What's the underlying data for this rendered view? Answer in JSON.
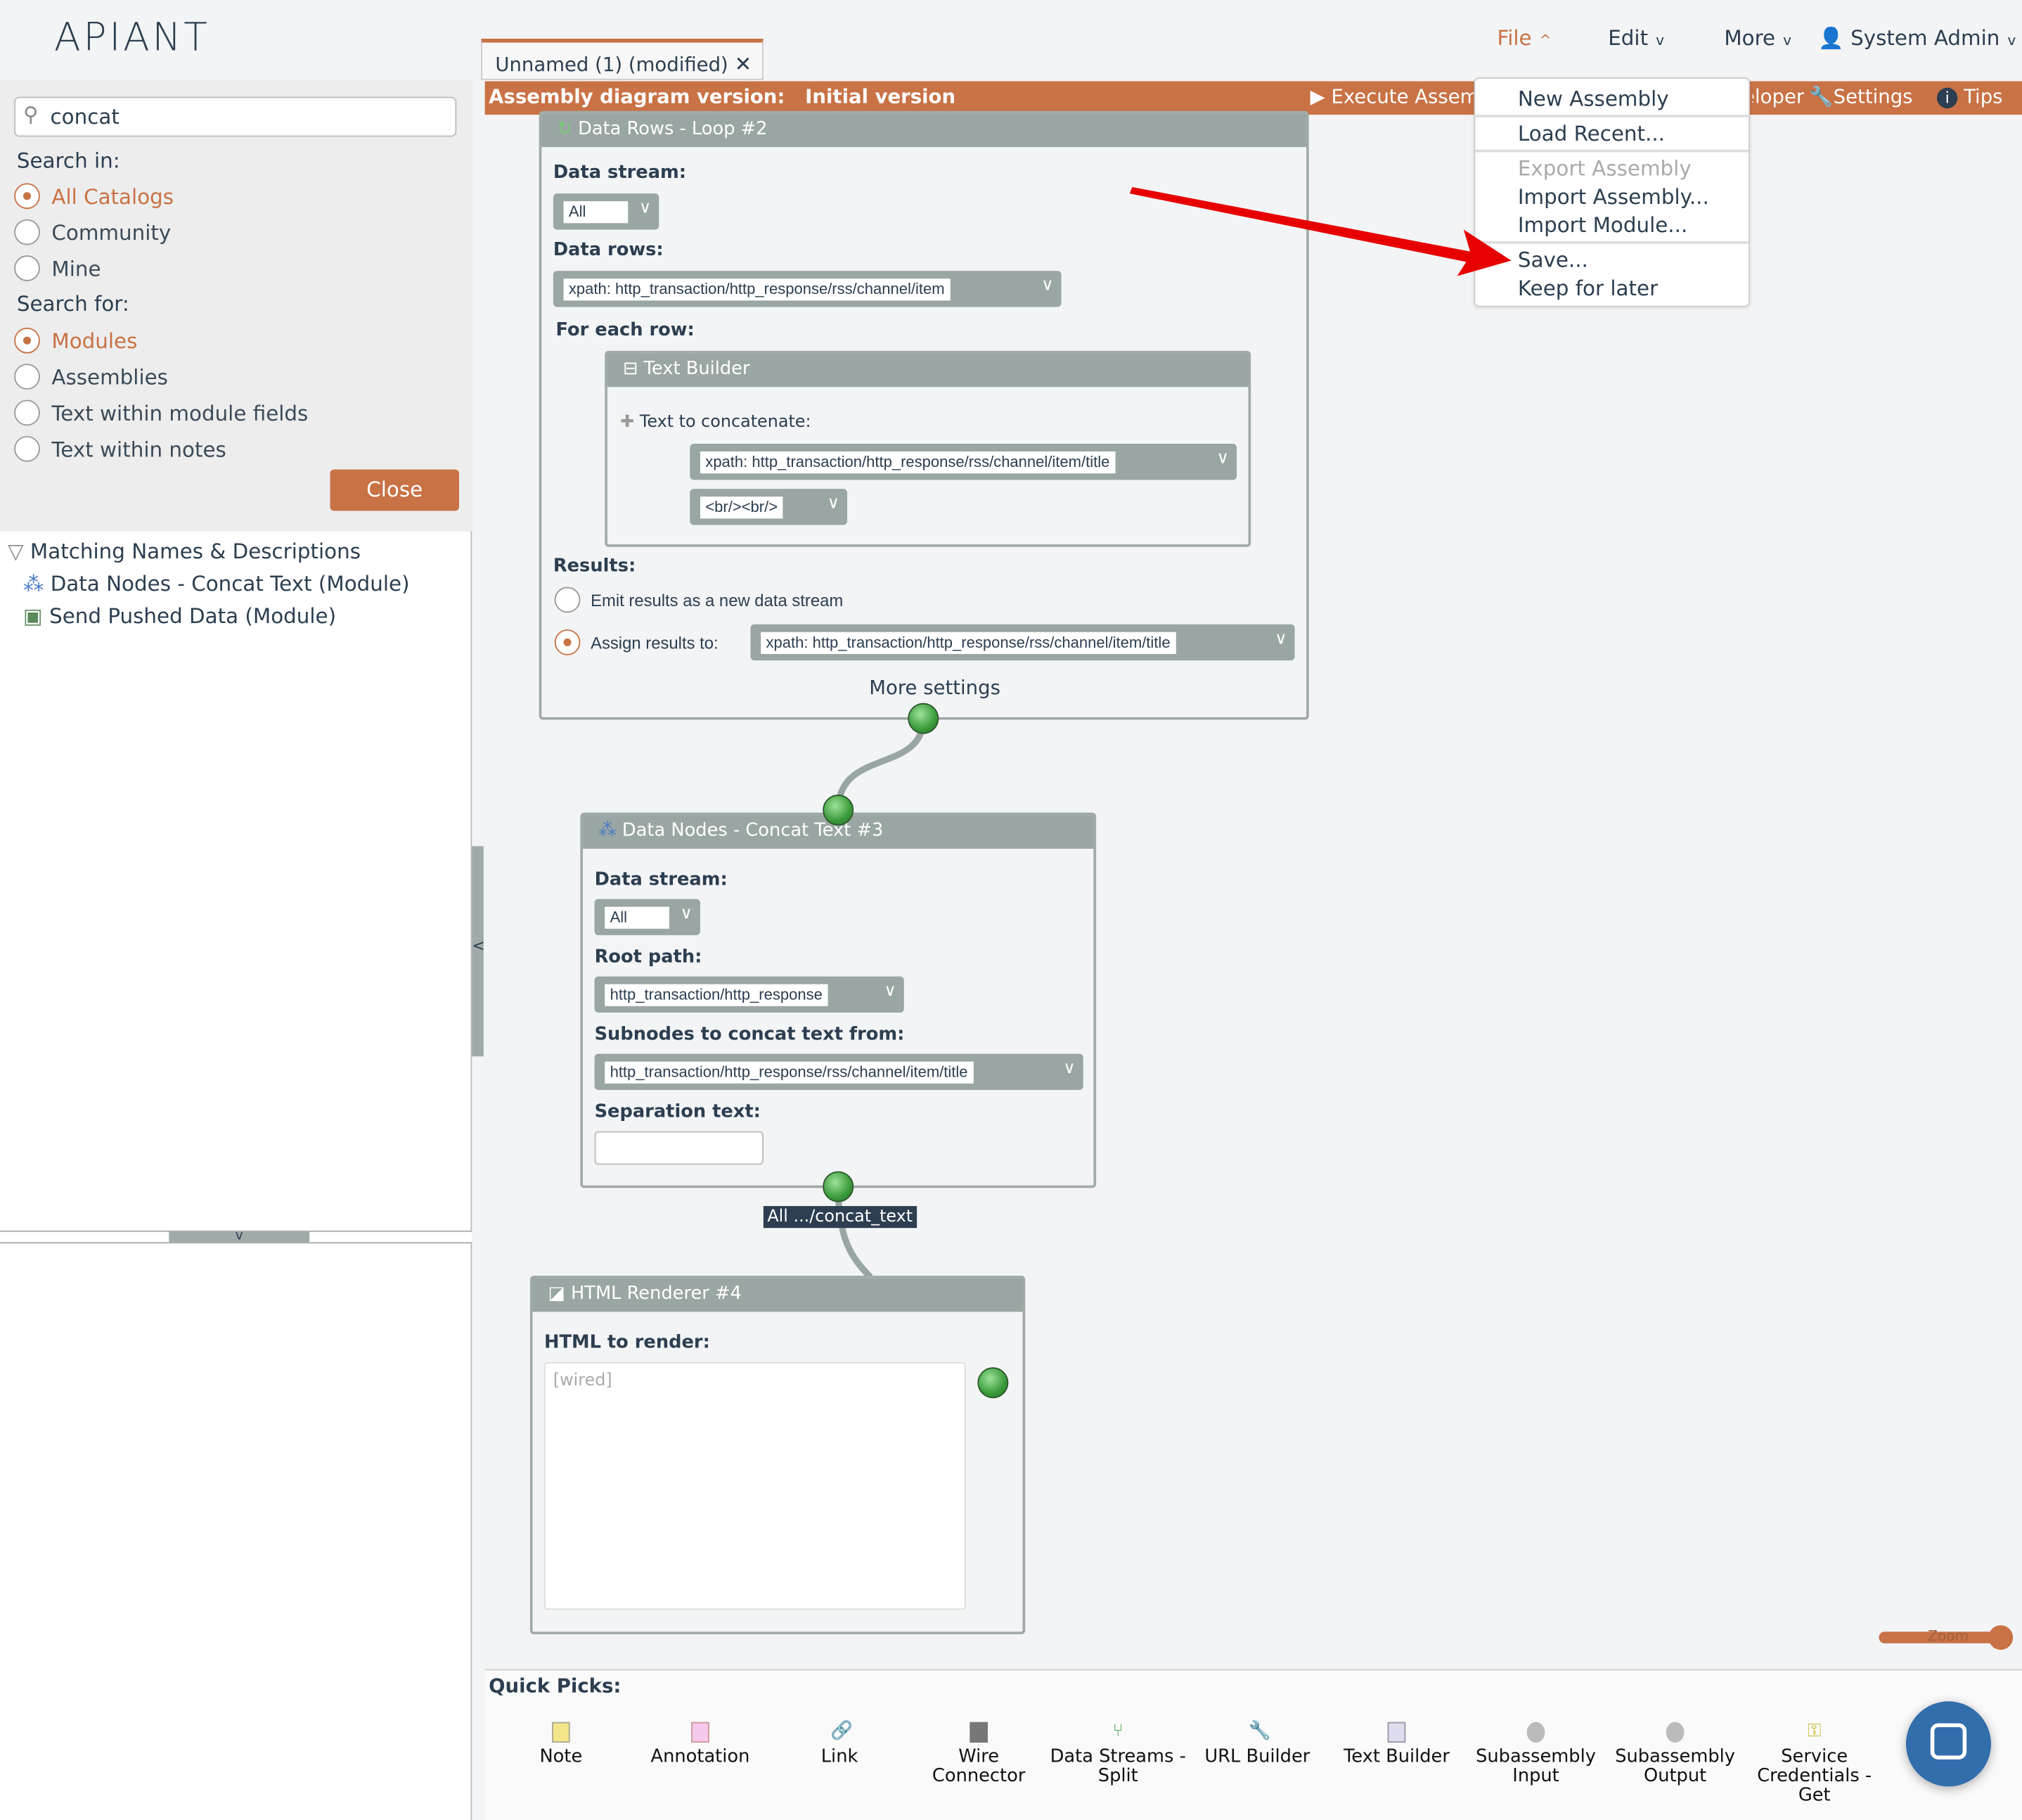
{
  "app": {
    "logo": "APIANT"
  },
  "nav": {
    "file": "File",
    "edit": "Edit",
    "more": "More",
    "user": "System Admin"
  },
  "tab": {
    "title": "Unnamed (1) (modified)"
  },
  "toolbar": {
    "version_label": "Assembly diagram version:",
    "version_value": "Initial version",
    "execute": "Execute Assembly",
    "developer": "Developer",
    "settings": "Settings",
    "tips": "Tips"
  },
  "file_menu": {
    "items": [
      "New Assembly",
      "Load Recent...",
      "Export Assembly",
      "Import Assembly...",
      "Import Module...",
      "Save...",
      "Keep for later"
    ],
    "disabled": [
      "Export Assembly"
    ]
  },
  "search": {
    "value": "concat",
    "search_in_label": "Search in:",
    "search_in": [
      "All Catalogs",
      "Community",
      "Mine"
    ],
    "search_in_selected": "All Catalogs",
    "search_for_label": "Search for:",
    "search_for": [
      "Modules",
      "Assemblies",
      "Text within module fields",
      "Text within notes"
    ],
    "search_for_selected": "Modules",
    "close": "Close"
  },
  "results": {
    "header": "Matching Names & Descriptions",
    "items": [
      "Data Nodes - Concat Text (Module)",
      "Send Pushed Data (Module)"
    ]
  },
  "nodes": {
    "loop": {
      "title": "Data Rows - Loop #2",
      "data_stream_label": "Data stream:",
      "data_stream": "All",
      "data_rows_label": "Data rows:",
      "data_rows": "xpath: http_transaction/http_response/rss/channel/item",
      "for_each_label": "For each row:",
      "results_label": "Results:",
      "emit": "Emit results as a new data stream",
      "assign": "Assign results to:",
      "assign_value": "xpath: http_transaction/http_response/rss/channel/item/title",
      "more_settings": "More settings"
    },
    "text_builder": {
      "title": "Text Builder",
      "label": "Text to concatenate:",
      "value1": "xpath: http_transaction/http_response/rss/channel/item/title",
      "value2": "<br/><br/>"
    },
    "concat": {
      "title": "Data Nodes - Concat Text #3",
      "data_stream_label": "Data stream:",
      "data_stream": "All",
      "root_label": "Root path:",
      "root": "http_transaction/http_response",
      "subnodes_label": "Subnodes to concat text from:",
      "subnodes": "http_transaction/http_response/rss/channel/item/title",
      "sep_label": "Separation text:",
      "sep": ""
    },
    "wire_label": "All .../concat_text",
    "html": {
      "title": "HTML Renderer #4",
      "label": "HTML to render:",
      "placeholder": "[wired]"
    }
  },
  "zoom_label": "Zoom",
  "zoom_level": 0.95,
  "quick_picks": {
    "label": "Quick Picks:",
    "items": [
      "Note",
      "Annotation",
      "Link",
      "Wire Connector",
      "Data Streams - Split",
      "URL Builder",
      "Text Builder",
      "Subassembly Input",
      "Subassembly Output",
      "Service Credentials - Get"
    ]
  },
  "colors": {
    "accent": "#c87245",
    "node_header": "#9aa6a3",
    "chat": "#336eac"
  }
}
